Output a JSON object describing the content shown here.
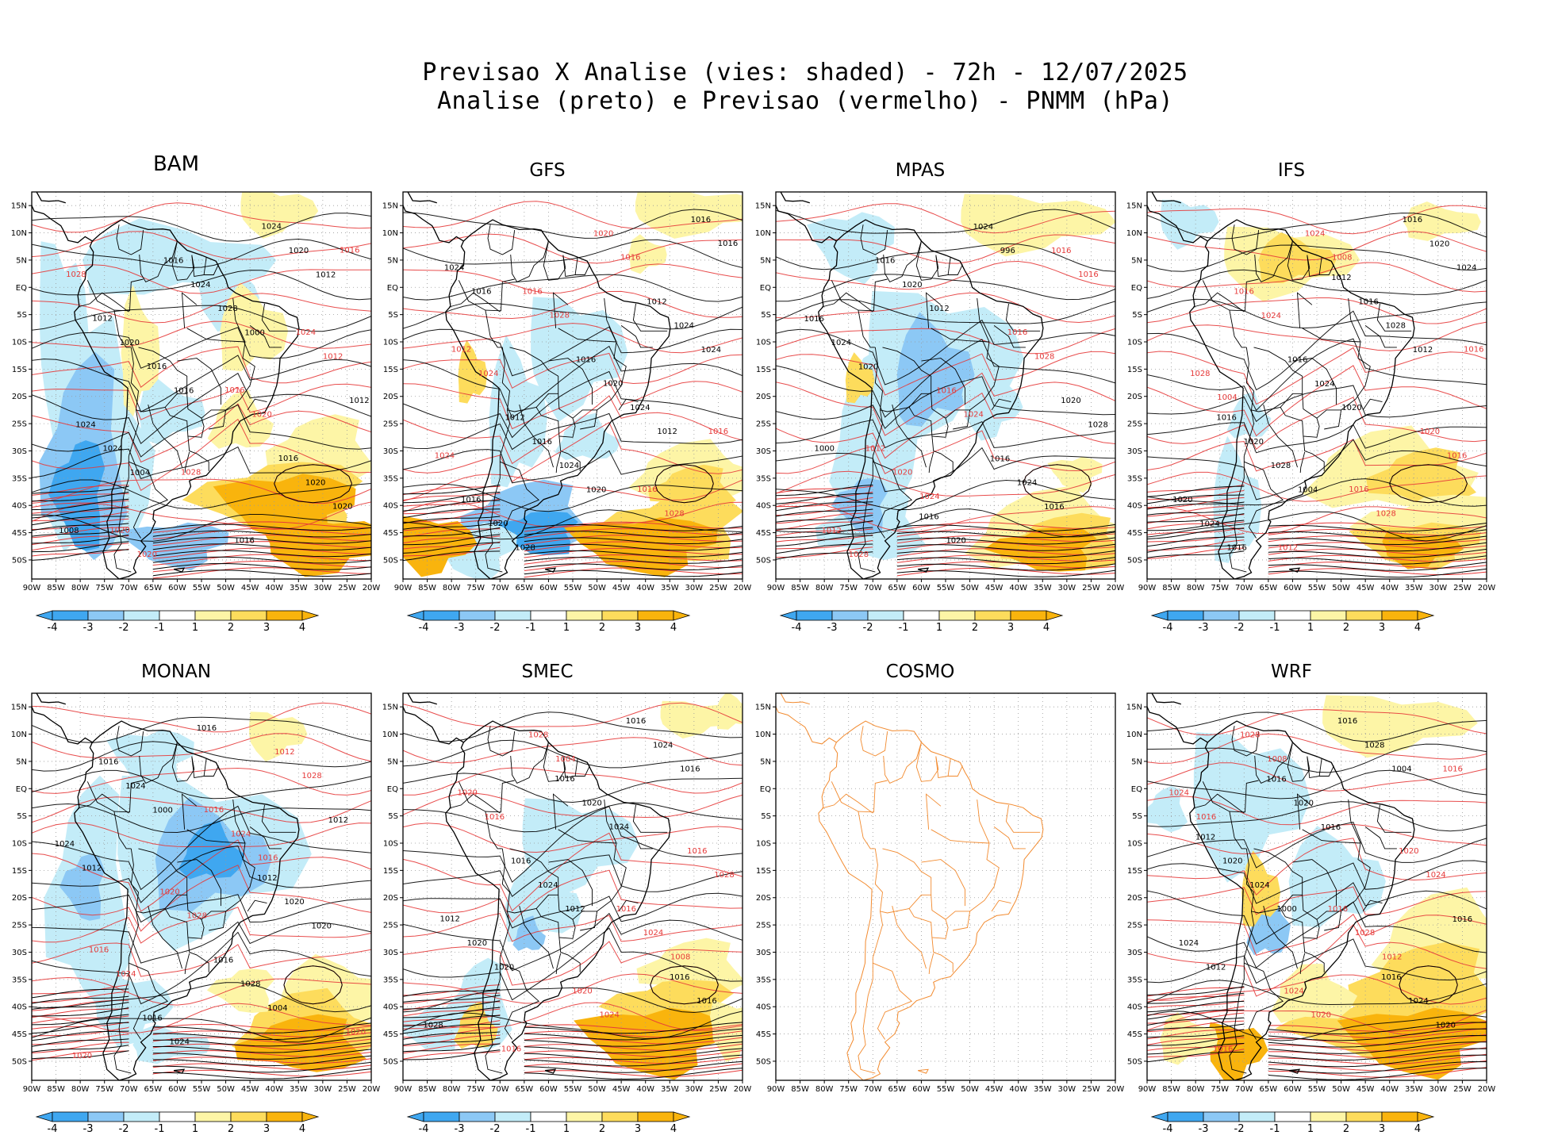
{
  "title": {
    "line1": "Previsao X Analise (vies: shaded) - 72h - 12/07/2025",
    "line2": "Analise (preto) e Previsao (vermelho) - PNMM (hPa)"
  },
  "colors": {
    "neg4": "#3fa7f0",
    "neg3": "#8cc8f5",
    "neg2": "#c3ecf8",
    "neg1": "#ffffff",
    "pos1": "#ffffff",
    "pos2": "#fdf5a6",
    "pos3": "#fddc5c",
    "pos4": "#f9b40d",
    "analysis": "#000000",
    "forecast": "#e63a3a",
    "coast_cosmo": "#f28a2e"
  },
  "axes": {
    "lat_ticks": [
      "15N",
      "10N",
      "5N",
      "EQ",
      "5S",
      "10S",
      "15S",
      "20S",
      "25S",
      "30S",
      "35S",
      "40S",
      "45S",
      "50S"
    ],
    "lon_ticks": [
      "90W",
      "85W",
      "80W",
      "75W",
      "70W",
      "65W",
      "60W",
      "55W",
      "50W",
      "45W",
      "40W",
      "35W",
      "30W",
      "25W",
      "20W"
    ]
  },
  "colorbar": {
    "labels": [
      "-4",
      "-3",
      "-2",
      "-1",
      "1",
      "2",
      "3",
      "4"
    ]
  },
  "panels": [
    {
      "id": "bam",
      "title": "BAM",
      "has_data": true,
      "big": true,
      "black_labels": [
        "1012",
        "1016",
        "1016",
        "1012",
        "1016",
        "1020",
        "1020",
        "1024",
        "1024",
        "1024",
        "1016",
        "1020",
        "1028",
        "1024",
        "1020",
        "1016",
        "1008",
        "1000",
        "1004",
        "1012"
      ],
      "red_labels": [
        "1016",
        "1016",
        "1020",
        "1024",
        "1028",
        "1028",
        "1020",
        "1020",
        "1012"
      ]
    },
    {
      "id": "gfs",
      "title": "GFS",
      "has_data": true,
      "big": false,
      "black_labels": [
        "1012",
        "1016",
        "1016",
        "1016",
        "1012",
        "1016",
        "1016",
        "1020",
        "1020",
        "1024",
        "1024",
        "1024",
        "1024",
        "1028",
        "1024",
        "1020",
        "1016",
        "1012"
      ],
      "red_labels": [
        "1012",
        "1016",
        "1016",
        "1016",
        "1020",
        "1024",
        "1028",
        "1028",
        "1024",
        "1016"
      ]
    },
    {
      "id": "mpas",
      "title": "MPAS",
      "has_data": true,
      "big": false,
      "black_labels": [
        "1016",
        "1016",
        "1016",
        "1016",
        "1020",
        "1020",
        "1024",
        "1024",
        "1020",
        "1028",
        "1024",
        "1020",
        "1016",
        "1012",
        "1000",
        "996"
      ],
      "red_labels": [
        "1012",
        "1016",
        "1016",
        "1012",
        "1016",
        "1020",
        "1016",
        "1024",
        "1028",
        "1028",
        "1024"
      ]
    },
    {
      "id": "ifs",
      "title": "IFS",
      "has_data": true,
      "big": false,
      "black_labels": [
        "1012",
        "1016",
        "1016",
        "1016",
        "1020",
        "1016",
        "1020",
        "1020",
        "1024",
        "1024",
        "1028",
        "1028",
        "1024",
        "1020",
        "1016",
        "1012",
        "1004"
      ],
      "red_labels": [
        "1012",
        "1016",
        "1016",
        "1016",
        "1020",
        "1024",
        "1028",
        "1028",
        "1024",
        "1016",
        "1008",
        "1004"
      ]
    },
    {
      "id": "monan",
      "title": "MONAN",
      "has_data": true,
      "big": false,
      "black_labels": [
        "1012",
        "1016",
        "1012",
        "1016",
        "1016",
        "1020",
        "1024",
        "1024",
        "1028",
        "1024",
        "1020",
        "1016",
        "1012",
        "1004",
        "1000"
      ],
      "red_labels": [
        "1016",
        "1016",
        "1012",
        "1020",
        "1020",
        "1024",
        "1024",
        "1028",
        "1028",
        "1020",
        "1016"
      ]
    },
    {
      "id": "smec",
      "title": "SMEC",
      "has_data": true,
      "big": false,
      "black_labels": [
        "1016",
        "1016",
        "1012",
        "1016",
        "1016",
        "1016",
        "1020",
        "1020",
        "1024",
        "1024",
        "1028",
        "1024",
        "1020",
        "1016",
        "1012"
      ],
      "red_labels": [
        "1016",
        "1016",
        "1016",
        "1020",
        "1020",
        "1024",
        "1028",
        "1028",
        "1024",
        "1016",
        "1008",
        "1004"
      ]
    },
    {
      "id": "cosmo",
      "title": "COSMO",
      "has_data": false,
      "big": false,
      "black_labels": [],
      "red_labels": []
    },
    {
      "id": "wrf",
      "title": "WRF",
      "has_data": true,
      "big": false,
      "black_labels": [
        "1012",
        "1016",
        "1016",
        "1016",
        "1016",
        "1020",
        "1024",
        "1020",
        "1024",
        "1028",
        "1024",
        "1020",
        "1016",
        "1012",
        "1004",
        "1000"
      ],
      "red_labels": [
        "1016",
        "1016",
        "1016",
        "1020",
        "1024",
        "1024",
        "1028",
        "1028",
        "1024",
        "1020",
        "1016",
        "1012",
        "1008"
      ]
    }
  ]
}
